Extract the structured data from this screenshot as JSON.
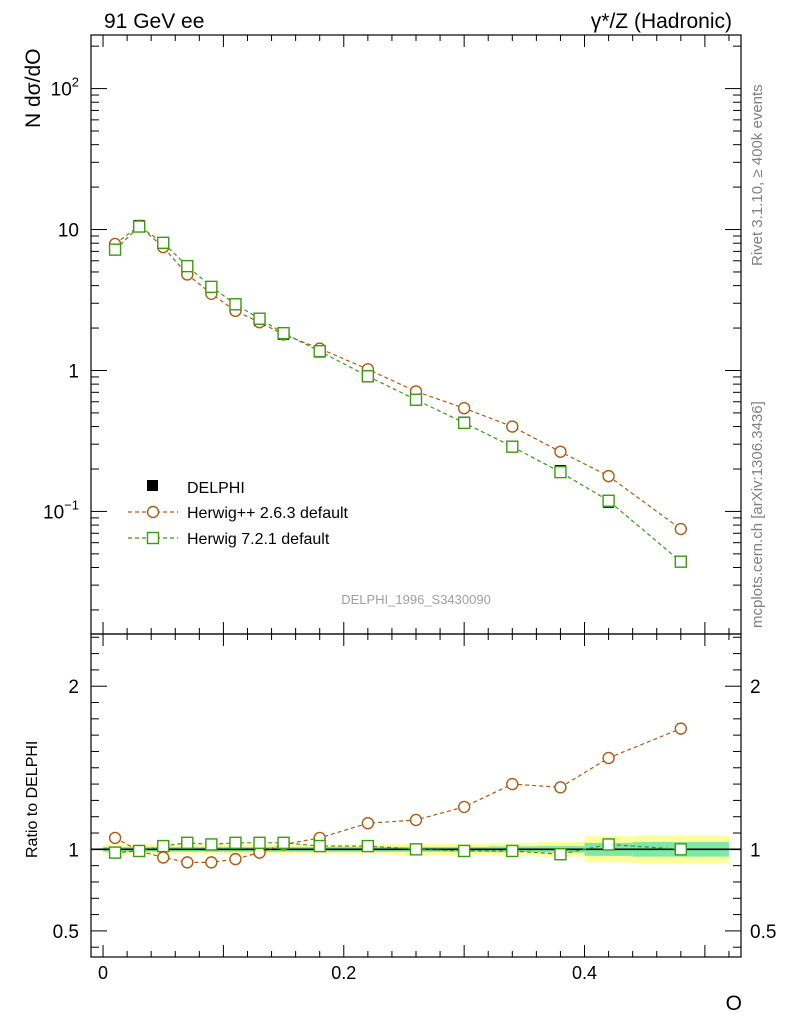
{
  "header": {
    "left": "91 GeV ee",
    "right": "γ*/Z (Hadronic)"
  },
  "side": {
    "top": "Rivet 3.1.10, ≥ 400k events",
    "bottom": "mcplots.cern.ch [arXiv:1306.3436]"
  },
  "watermark": "DELPHI_1996_S3430090",
  "colors": {
    "data": "#000000",
    "herwigpp": "#b05a10",
    "herwig7": "#3a9a12",
    "band_inner": "#7fe8a8",
    "band_outer": "#ffff9c"
  },
  "chart_data": [
    {
      "type": "scatter",
      "title": "91 GeV ee — γ*/Z (Hadronic)",
      "xlabel": "O",
      "ylabel": "N dσ/dO",
      "yscale": "log",
      "xlim": [
        -0.01,
        0.53
      ],
      "ylim": [
        0.0135,
        240
      ],
      "yticks": [
        {
          "value": 0.1,
          "base": "10",
          "exp": "−1"
        },
        {
          "value": 1,
          "base": "1",
          "exp": ""
        },
        {
          "value": 10,
          "base": "10",
          "exp": ""
        },
        {
          "value": 100,
          "base": "10",
          "exp": "2"
        }
      ],
      "legend": [
        "DELPHI",
        "Herwig++ 2.6.3 default",
        "Herwig 7.2.1 default"
      ],
      "x": [
        0.01,
        0.03,
        0.05,
        0.07,
        0.09,
        0.11,
        0.13,
        0.15,
        0.18,
        0.22,
        0.26,
        0.3,
        0.34,
        0.38,
        0.42,
        0.48
      ],
      "series": [
        {
          "name": "DELPHI",
          "values": [
            7.4,
            10.7,
            7.9,
            5.35,
            3.8,
            2.85,
            2.25,
            1.8,
            1.35,
            0.9,
            0.62,
            0.43,
            0.29,
            0.195,
            0.116,
            0.044
          ]
        },
        {
          "name": "Herwig++ 2.6.3 default",
          "values": [
            7.9,
            10.6,
            7.5,
            4.8,
            3.5,
            2.65,
            2.2,
            1.8,
            1.43,
            1.02,
            0.71,
            0.54,
            0.4,
            0.265,
            0.178,
            0.075
          ]
        },
        {
          "name": "Herwig 7.2.1 default",
          "values": [
            7.2,
            10.5,
            8.05,
            5.5,
            3.92,
            2.95,
            2.33,
            1.84,
            1.37,
            0.91,
            0.62,
            0.425,
            0.288,
            0.19,
            0.119,
            0.044
          ]
        }
      ]
    },
    {
      "type": "scatter",
      "title": "",
      "xlabel": "O",
      "ylabel": "Ratio to DELPHI",
      "xlim": [
        -0.01,
        0.53
      ],
      "ylim": [
        0.34,
        2.32
      ],
      "yticks": [
        0.5,
        1,
        2
      ],
      "ytick_labels": [
        "0.5",
        "1",
        "2"
      ],
      "xticks": [
        0,
        0.2,
        0.4
      ],
      "xtick_labels": [
        "0",
        "0.2",
        "0.4"
      ],
      "x": [
        0.01,
        0.03,
        0.05,
        0.07,
        0.09,
        0.11,
        0.13,
        0.15,
        0.18,
        0.22,
        0.26,
        0.3,
        0.34,
        0.38,
        0.42,
        0.48
      ],
      "band_edges": [
        0.0,
        0.02,
        0.04,
        0.06,
        0.08,
        0.1,
        0.12,
        0.14,
        0.16,
        0.2,
        0.24,
        0.28,
        0.32,
        0.36,
        0.4,
        0.44,
        0.52
      ],
      "band_inner": [
        0.015,
        0.015,
        0.015,
        0.015,
        0.015,
        0.015,
        0.015,
        0.015,
        0.015,
        0.015,
        0.015,
        0.015,
        0.018,
        0.02,
        0.04,
        0.045
      ],
      "band_outer": [
        0.03,
        0.03,
        0.03,
        0.03,
        0.03,
        0.03,
        0.03,
        0.03,
        0.03,
        0.03,
        0.035,
        0.035,
        0.04,
        0.045,
        0.08,
        0.085
      ],
      "series": [
        {
          "name": "Herwig++ 2.6.3 default",
          "values": [
            1.07,
            0.99,
            0.95,
            0.92,
            0.92,
            0.94,
            0.98,
            1.03,
            1.07,
            1.16,
            1.18,
            1.26,
            1.4,
            1.38,
            1.56,
            1.74
          ]
        },
        {
          "name": "Herwig 7.2.1 default",
          "values": [
            0.98,
            0.99,
            1.02,
            1.04,
            1.03,
            1.04,
            1.04,
            1.04,
            1.02,
            1.02,
            1.0,
            0.99,
            0.99,
            0.97,
            1.03,
            1.0
          ]
        }
      ]
    }
  ]
}
